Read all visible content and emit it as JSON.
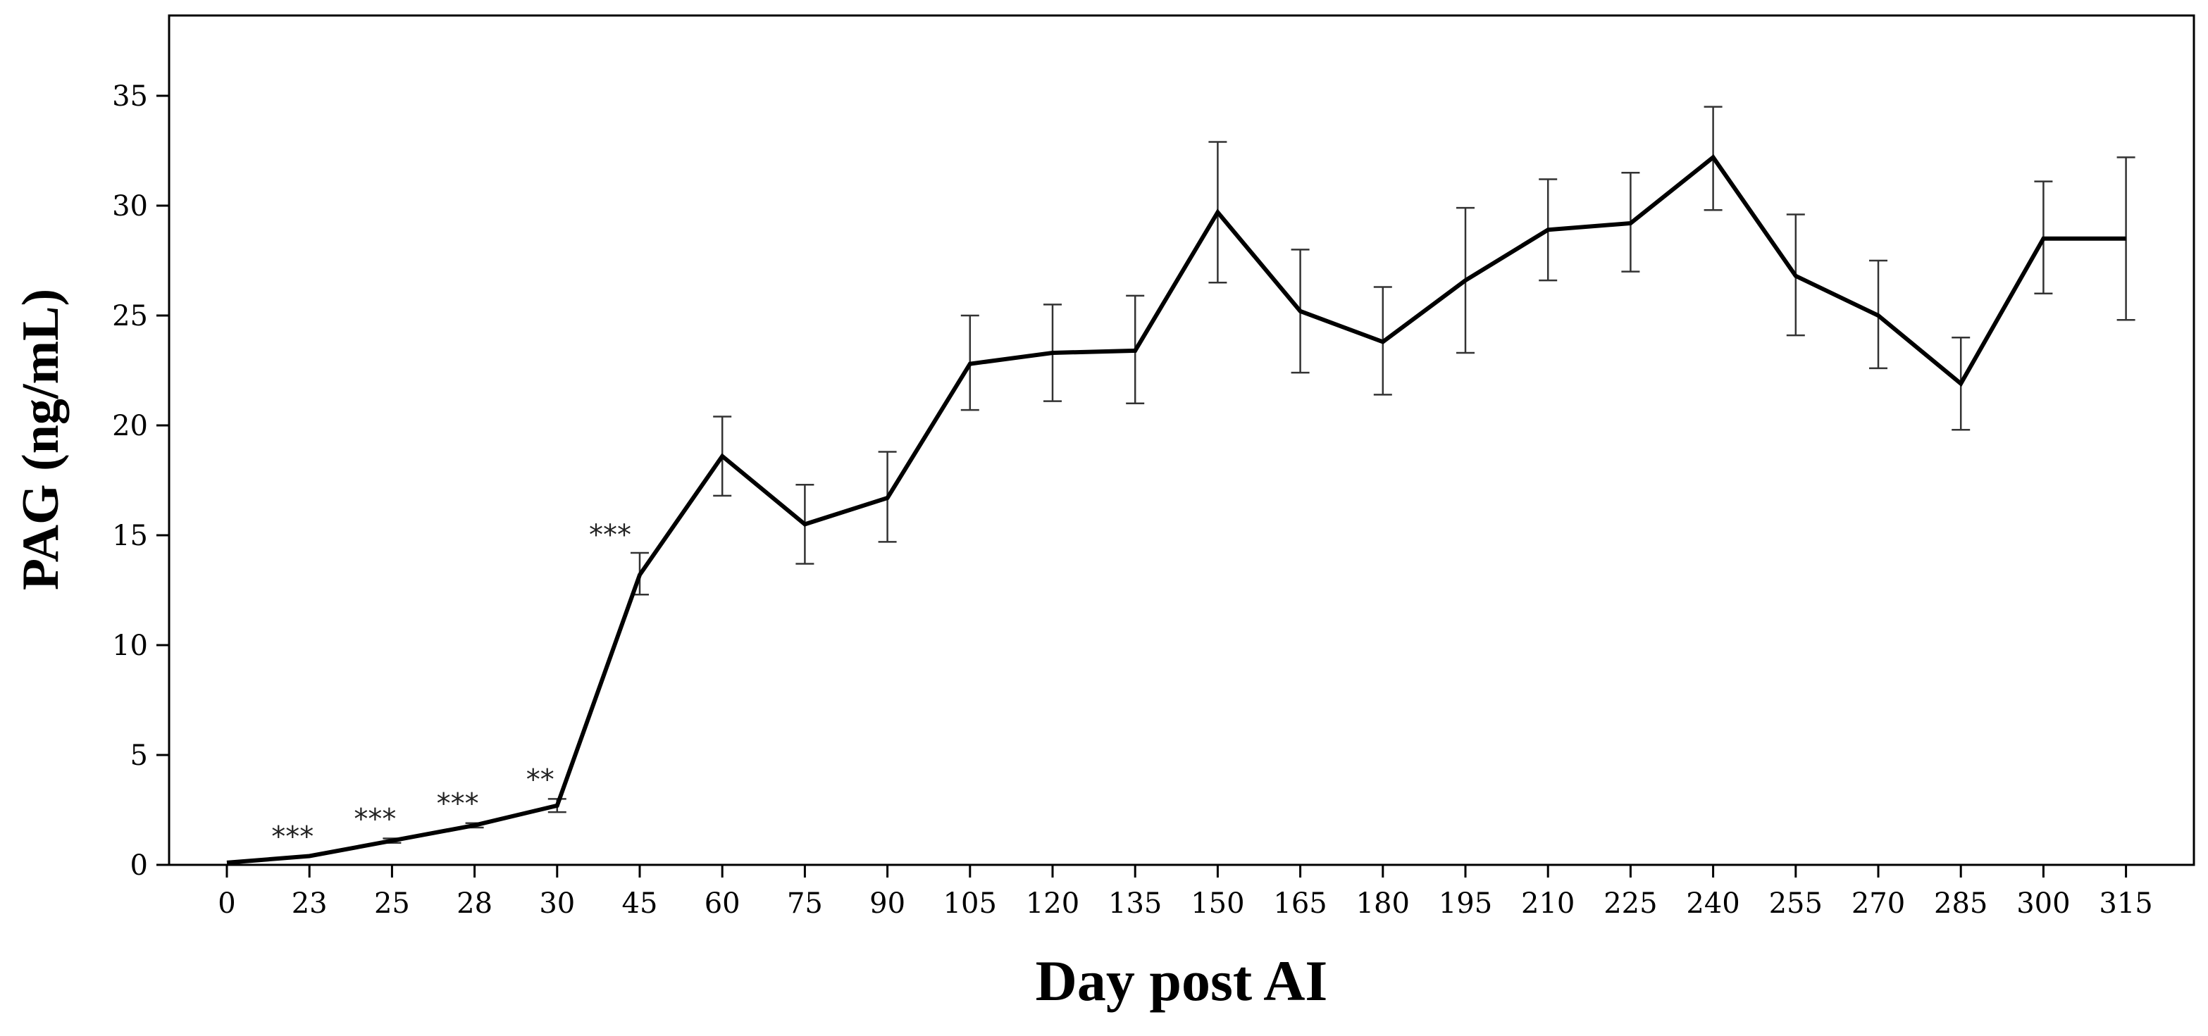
{
  "chart_data": {
    "type": "line",
    "title": "",
    "xlabel": "Day post AI",
    "ylabel": "PAG (ng/mL)",
    "ylim": [
      0,
      38
    ],
    "yticks": [
      0,
      5,
      10,
      15,
      20,
      25,
      30,
      35
    ],
    "grid": false,
    "categories": [
      "0",
      "23",
      "25",
      "28",
      "30",
      "45",
      "60",
      "75",
      "90",
      "105",
      "120",
      "135",
      "150",
      "165",
      "180",
      "195",
      "210",
      "225",
      "240",
      "255",
      "270",
      "285",
      "300",
      "315"
    ],
    "series": [
      {
        "values": [
          0.1,
          0.4,
          1.1,
          1.8,
          2.7,
          13.2,
          18.6,
          15.5,
          16.7,
          22.8,
          23.3,
          23.4,
          29.7,
          25.2,
          23.8,
          26.6,
          28.9,
          29.2,
          32.2,
          26.8,
          25.0,
          21.9,
          28.5,
          28.5
        ],
        "error_low": [
          0.1,
          0.4,
          1.0,
          1.7,
          2.4,
          12.3,
          16.8,
          13.7,
          14.7,
          20.7,
          21.1,
          21.0,
          26.5,
          22.4,
          21.4,
          23.3,
          26.6,
          27.0,
          29.8,
          24.1,
          22.6,
          19.8,
          26.0,
          24.8
        ],
        "error_high": [
          0.1,
          0.4,
          1.2,
          1.9,
          3.0,
          14.2,
          20.4,
          17.3,
          18.8,
          25.0,
          25.5,
          25.9,
          32.9,
          28.0,
          26.3,
          29.9,
          31.2,
          31.5,
          34.5,
          29.6,
          27.5,
          24.0,
          31.1,
          32.2
        ]
      }
    ],
    "annotations": [
      {
        "category": "23",
        "text": "***"
      },
      {
        "category": "25",
        "text": "***"
      },
      {
        "category": "28",
        "text": "***"
      },
      {
        "category": "30",
        "text": "**"
      },
      {
        "category": "45",
        "text": "***"
      }
    ]
  }
}
